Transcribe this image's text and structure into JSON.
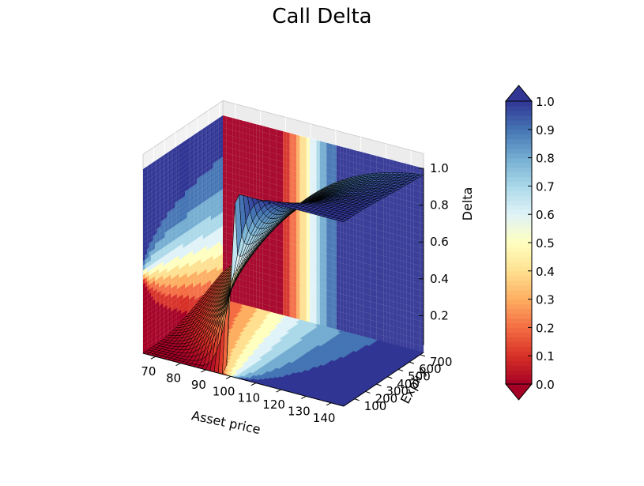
{
  "chart_data": {
    "type": "surface",
    "title": "Call Delta",
    "xlabel": "Asset price",
    "ylabel": "Expiry",
    "zlabel": "Delta",
    "x_ticks": [
      70,
      80,
      90,
      100,
      110,
      120,
      130,
      140
    ],
    "y_ticks": [
      100,
      200,
      300,
      400,
      500,
      600,
      700
    ],
    "z_ticks": [
      0.2,
      0.4,
      0.6,
      0.8,
      1.0
    ],
    "xlim": [
      65,
      145
    ],
    "ylim": [
      1,
      730
    ],
    "zlim": [
      0.0,
      1.0
    ],
    "strike": 100,
    "colormap": "RdYlBu",
    "colormap_stops": [
      "#a50026",
      "#d73027",
      "#f46d43",
      "#fdae61",
      "#fee090",
      "#ffffbf",
      "#e0f3f8",
      "#abd9e9",
      "#74add1",
      "#4575b4",
      "#313695"
    ],
    "colorbar": {
      "ticks": [
        "0.0",
        "0.1",
        "0.2",
        "0.3",
        "0.4",
        "0.5",
        "0.6",
        "0.7",
        "0.8",
        "0.9",
        "1.0"
      ],
      "range": [
        0.0,
        1.0
      ],
      "extend": "both"
    },
    "grid": true
  }
}
